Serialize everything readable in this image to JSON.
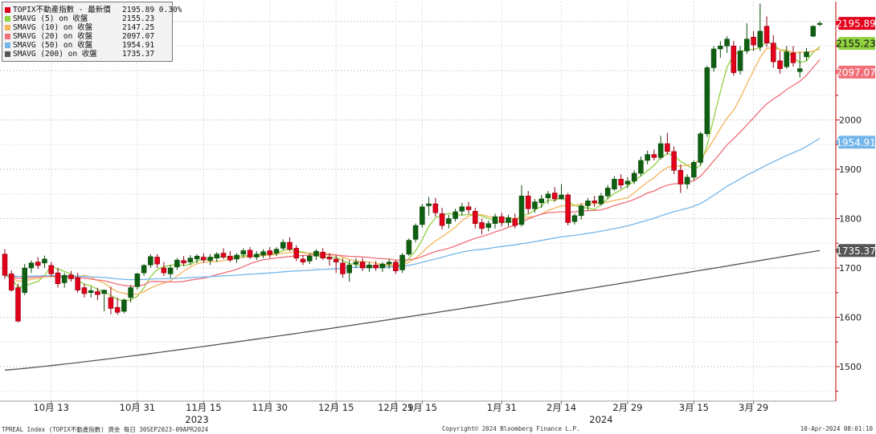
{
  "chart_data": {
    "type": "candlestick",
    "ylim": [
      1430,
      2240
    ],
    "y_ticks": [
      1500,
      1600,
      1700,
      1800,
      1900,
      2000
    ],
    "x_tick_labels": [
      {
        "i": 7,
        "label": "10月 13"
      },
      {
        "i": 20,
        "label": "10月 31"
      },
      {
        "i": 30,
        "label": "11月 15"
      },
      {
        "i": 40,
        "label": "11月 30"
      },
      {
        "i": 50,
        "label": "12月 15"
      },
      {
        "i": 59,
        "label": "12月 29"
      },
      {
        "i": 63,
        "label": "1月 15"
      },
      {
        "i": 75,
        "label": "1月 31"
      },
      {
        "i": 84,
        "label": "2月 14"
      },
      {
        "i": 94,
        "label": "2月 29"
      },
      {
        "i": 104,
        "label": "3月 15"
      },
      {
        "i": 113,
        "label": "3月 29"
      }
    ],
    "year_labels": [
      {
        "i": 29,
        "label": "2023"
      },
      {
        "i": 90,
        "label": "2024"
      }
    ],
    "ohlc": [
      [
        1728,
        1738,
        1678,
        1685
      ],
      [
        1688,
        1695,
        1652,
        1655
      ],
      [
        1660,
        1668,
        1590,
        1592
      ],
      [
        1650,
        1708,
        1645,
        1700
      ],
      [
        1700,
        1715,
        1690,
        1710
      ],
      [
        1712,
        1722,
        1698,
        1705
      ],
      [
        1710,
        1725,
        1700,
        1718
      ],
      [
        1705,
        1712,
        1682,
        1688
      ],
      [
        1690,
        1700,
        1660,
        1668
      ],
      [
        1670,
        1690,
        1660,
        1685
      ],
      [
        1686,
        1694,
        1672,
        1678
      ],
      [
        1680,
        1690,
        1650,
        1655
      ],
      [
        1660,
        1668,
        1640,
        1648
      ],
      [
        1650,
        1662,
        1640,
        1654
      ],
      [
        1652,
        1660,
        1635,
        1646
      ],
      [
        1648,
        1656,
        1612,
        1655
      ],
      [
        1640,
        1662,
        1606,
        1618
      ],
      [
        1620,
        1640,
        1605,
        1610
      ],
      [
        1612,
        1638,
        1608,
        1635
      ],
      [
        1640,
        1665,
        1630,
        1660
      ],
      [
        1662,
        1690,
        1656,
        1688
      ],
      [
        1690,
        1708,
        1684,
        1705
      ],
      [
        1706,
        1728,
        1700,
        1723
      ],
      [
        1722,
        1728,
        1700,
        1708
      ],
      [
        1700,
        1712,
        1684,
        1690
      ],
      [
        1688,
        1706,
        1680,
        1700
      ],
      [
        1702,
        1720,
        1696,
        1716
      ],
      [
        1715,
        1724,
        1704,
        1710
      ],
      [
        1712,
        1726,
        1706,
        1720
      ],
      [
        1718,
        1728,
        1710,
        1724
      ],
      [
        1722,
        1730,
        1710,
        1716
      ],
      [
        1715,
        1728,
        1706,
        1722
      ],
      [
        1720,
        1732,
        1712,
        1728
      ],
      [
        1730,
        1740,
        1718,
        1722
      ],
      [
        1724,
        1734,
        1712,
        1716
      ],
      [
        1718,
        1730,
        1710,
        1726
      ],
      [
        1728,
        1740,
        1720,
        1735
      ],
      [
        1736,
        1742,
        1718,
        1722
      ],
      [
        1722,
        1734,
        1716,
        1728
      ],
      [
        1726,
        1738,
        1720,
        1733
      ],
      [
        1735,
        1742,
        1720,
        1727
      ],
      [
        1730,
        1742,
        1724,
        1738
      ],
      [
        1740,
        1758,
        1736,
        1752
      ],
      [
        1752,
        1762,
        1734,
        1738
      ],
      [
        1740,
        1746,
        1714,
        1720
      ],
      [
        1718,
        1726,
        1706,
        1712
      ],
      [
        1714,
        1730,
        1708,
        1724
      ],
      [
        1724,
        1738,
        1716,
        1734
      ],
      [
        1732,
        1740,
        1716,
        1720
      ],
      [
        1722,
        1730,
        1705,
        1718
      ],
      [
        1718,
        1726,
        1690,
        1712
      ],
      [
        1710,
        1720,
        1680,
        1688
      ],
      [
        1690,
        1716,
        1672,
        1706
      ],
      [
        1708,
        1720,
        1700,
        1712
      ],
      [
        1712,
        1720,
        1694,
        1700
      ],
      [
        1700,
        1712,
        1692,
        1706
      ],
      [
        1706,
        1714,
        1694,
        1700
      ],
      [
        1700,
        1712,
        1692,
        1708
      ],
      [
        1708,
        1718,
        1698,
        1712
      ],
      [
        1712,
        1716,
        1688,
        1694
      ],
      [
        1696,
        1730,
        1690,
        1726
      ],
      [
        1728,
        1760,
        1724,
        1756
      ],
      [
        1758,
        1790,
        1752,
        1786
      ],
      [
        1788,
        1830,
        1782,
        1824
      ],
      [
        1826,
        1844,
        1806,
        1830
      ],
      [
        1830,
        1842,
        1804,
        1812
      ],
      [
        1810,
        1822,
        1778,
        1786
      ],
      [
        1790,
        1808,
        1780,
        1800
      ],
      [
        1800,
        1820,
        1794,
        1814
      ],
      [
        1815,
        1832,
        1806,
        1824
      ],
      [
        1824,
        1834,
        1810,
        1818
      ],
      [
        1815,
        1822,
        1780,
        1790
      ],
      [
        1792,
        1800,
        1768,
        1780
      ],
      [
        1782,
        1796,
        1774,
        1790
      ],
      [
        1790,
        1810,
        1780,
        1804
      ],
      [
        1804,
        1812,
        1784,
        1792
      ],
      [
        1792,
        1808,
        1784,
        1802
      ],
      [
        1800,
        1810,
        1780,
        1786
      ],
      [
        1788,
        1868,
        1784,
        1846
      ],
      [
        1846,
        1856,
        1810,
        1820
      ],
      [
        1820,
        1840,
        1812,
        1834
      ],
      [
        1832,
        1848,
        1822,
        1840
      ],
      [
        1842,
        1856,
        1830,
        1850
      ],
      [
        1852,
        1864,
        1834,
        1840
      ],
      [
        1840,
        1870,
        1838,
        1848
      ],
      [
        1848,
        1852,
        1786,
        1792
      ],
      [
        1794,
        1810,
        1788,
        1806
      ],
      [
        1806,
        1830,
        1798,
        1826
      ],
      [
        1826,
        1842,
        1816,
        1836
      ],
      [
        1836,
        1846,
        1824,
        1832
      ],
      [
        1830,
        1852,
        1826,
        1846
      ],
      [
        1846,
        1868,
        1840,
        1862
      ],
      [
        1860,
        1886,
        1856,
        1880
      ],
      [
        1880,
        1890,
        1860,
        1868
      ],
      [
        1870,
        1884,
        1862,
        1876
      ],
      [
        1876,
        1898,
        1870,
        1892
      ],
      [
        1892,
        1926,
        1886,
        1918
      ],
      [
        1918,
        1938,
        1910,
        1930
      ],
      [
        1930,
        1940,
        1918,
        1924
      ],
      [
        1924,
        1968,
        1920,
        1952
      ],
      [
        1952,
        1974,
        1930,
        1936
      ],
      [
        1936,
        1946,
        1890,
        1898
      ],
      [
        1898,
        1910,
        1852,
        1870
      ],
      [
        1870,
        1890,
        1860,
        1884
      ],
      [
        1884,
        1918,
        1878,
        1914
      ],
      [
        1914,
        1976,
        1908,
        1972
      ],
      [
        1972,
        2110,
        1966,
        2106
      ],
      [
        2106,
        2150,
        2098,
        2144
      ],
      [
        2144,
        2160,
        2126,
        2150
      ],
      [
        2150,
        2170,
        2136,
        2164
      ],
      [
        2150,
        2160,
        2090,
        2096
      ],
      [
        2100,
        2150,
        2092,
        2140
      ],
      [
        2140,
        2196,
        2134,
        2164
      ],
      [
        2168,
        2180,
        2140,
        2152
      ],
      [
        2148,
        2236,
        2140,
        2180
      ],
      [
        2190,
        2210,
        2148,
        2156
      ],
      [
        2156,
        2172,
        2106,
        2118
      ],
      [
        2120,
        2140,
        2094,
        2104
      ],
      [
        2108,
        2150,
        2104,
        2138
      ],
      [
        2136,
        2150,
        2108,
        2116
      ],
      [
        2098,
        2138,
        2086,
        2104
      ],
      [
        2128,
        2146,
        2120,
        2138
      ],
      [
        2170,
        2192,
        2168,
        2190
      ],
      [
        2194,
        2200,
        2190,
        2196
      ]
    ],
    "series": [
      {
        "name": "TOPIX不動産指數 - 最新價",
        "last": 2195.89,
        "change": "0.30%",
        "color": "#e3001b"
      },
      {
        "name": "SMAVG (5)  on 收盤",
        "last": 2155.23,
        "color": "#8fd13f",
        "period": 5
      },
      {
        "name": "SMAVG (10)  on 收盤",
        "last": 2147.25,
        "color": "#f5b35a",
        "period": 10
      },
      {
        "name": "SMAVG (20)  on 收盤",
        "last": 2097.07,
        "color": "#f06f78",
        "period": 20
      },
      {
        "name": "SMAVG (50)  on 收盤",
        "last": 1954.91,
        "color": "#74b6ea",
        "period": 50
      },
      {
        "name": "SMAVG (200)  on 收盤",
        "last": 1735.37,
        "color": "#555555",
        "period": 200
      }
    ]
  },
  "legend_rows": [
    {
      "name": "TOPIX不動產指數 - 最新價",
      "value": "2195.89  0.30%",
      "color": "#e3001b"
    },
    {
      "name": "SMAVG (5)  on 收盤",
      "value": "2155.23",
      "color": "#8fd13f"
    },
    {
      "name": "SMAVG (10)  on 收盤",
      "value": "2147.25",
      "color": "#f5b35a"
    },
    {
      "name": "SMAVG (20)  on 收盤",
      "value": "2097.07",
      "color": "#f06f78"
    },
    {
      "name": "SMAVG (50)  on 收盤",
      "value": "1954.91",
      "color": "#74b6ea"
    },
    {
      "name": "SMAVG (200)  on 收盤",
      "value": "1735.37",
      "color": "#555555"
    }
  ],
  "value_tags": [
    {
      "value": 2195.89,
      "label": "2195.89",
      "color": "#e3001b"
    },
    {
      "value": 2155.23,
      "label": "2155.23",
      "color": "#8fd13f"
    },
    {
      "value": 2097.07,
      "label": "2097.07",
      "color": "#f06f78"
    },
    {
      "value": 1954.91,
      "label": "1954.91",
      "color": "#74b6ea"
    },
    {
      "value": 1735.37,
      "label": "1735.37",
      "color": "#555555"
    }
  ],
  "footer": {
    "left": "TPREAL Index (TOPIX不動產指數) 資金  每日 30SEP2023-09APR2024",
    "center": "Copyright© 2024 Bloomberg Finance L.P.",
    "right": "10-Apr-2024 08:01:10"
  }
}
